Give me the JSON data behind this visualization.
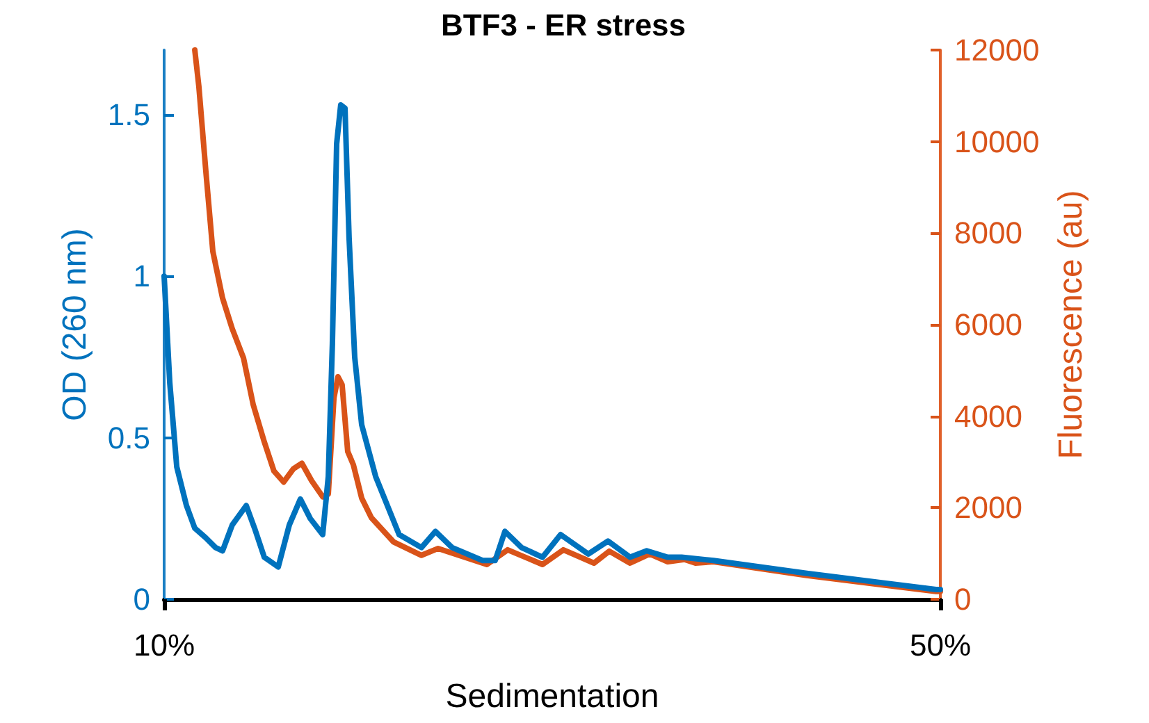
{
  "chart_data": {
    "type": "line",
    "title": "BTF3 - ER stress",
    "xlabel": "Sedimentation",
    "ylabel": "OD (260 nm)",
    "y2label": "Fluorescence (au)",
    "xlim": [
      10,
      50
    ],
    "xticks": [
      {
        "value": 10,
        "label": "10%"
      },
      {
        "value": 50,
        "label": "50%"
      }
    ],
    "ylim": [
      0,
      1.7
    ],
    "yticks": [
      0,
      0.5,
      1,
      1.5
    ],
    "y2lim": [
      0,
      12000
    ],
    "y2ticks": [
      0,
      2000,
      4000,
      6000,
      8000,
      10000,
      12000
    ],
    "grid": false,
    "marker": "none",
    "line_style": "solid",
    "series": [
      {
        "color": "#0072bd",
        "x": [
          10,
          10.29,
          10.65,
          11.15,
          11.58,
          12.15,
          12.65,
          13.01,
          13.51,
          14.23,
          14.66,
          15.16,
          15.88,
          16.45,
          17.02,
          17.53,
          18.17,
          18.46,
          18.67,
          18.89,
          19.1,
          19.32,
          19.53,
          19.82,
          20.18,
          20.9,
          22.11,
          23.26,
          23.98,
          24.84,
          26.41,
          27.06,
          27.56,
          28.42,
          29.5,
          30.43,
          31.86,
          32.87,
          34.01,
          34.87,
          35.95,
          36.67,
          38.31,
          43.12,
          49.78,
          50
        ],
        "values": [
          1.0,
          0.67,
          0.41,
          0.29,
          0.22,
          0.19,
          0.16,
          0.15,
          0.23,
          0.29,
          0.22,
          0.13,
          0.1,
          0.23,
          0.31,
          0.25,
          0.2,
          0.38,
          0.79,
          1.41,
          1.53,
          1.52,
          1.12,
          0.75,
          0.54,
          0.38,
          0.2,
          0.16,
          0.21,
          0.16,
          0.12,
          0.12,
          0.21,
          0.16,
          0.13,
          0.2,
          0.14,
          0.18,
          0.13,
          0.15,
          0.13,
          0.13,
          0.12,
          0.08,
          0.03,
          0.03
        ]
      },
      {
        "color": "#d95319",
        "axis": "y2",
        "x": [
          11.58,
          11.79,
          12.15,
          12.51,
          13.01,
          13.51,
          14.09,
          14.59,
          15.16,
          15.66,
          16.16,
          16.66,
          17.1,
          17.6,
          18.17,
          18.46,
          18.75,
          18.96,
          19.17,
          19.46,
          19.75,
          20.18,
          20.68,
          21.83,
          23.26,
          24.12,
          26.63,
          27.7,
          29.5,
          30.57,
          32.15,
          32.94,
          34.01,
          35.02,
          35.95,
          36.81,
          37.38,
          38.31,
          43.12,
          49.78,
          50
        ],
        "values": [
          12000,
          11200,
          9350,
          7600,
          6580,
          5910,
          5270,
          4250,
          3440,
          2800,
          2560,
          2850,
          2970,
          2590,
          2240,
          2300,
          4400,
          4860,
          4690,
          3230,
          2940,
          2210,
          1780,
          1250,
          960,
          1110,
          760,
          1080,
          760,
          1080,
          790,
          1050,
          790,
          990,
          820,
          870,
          790,
          820,
          520,
          170,
          170
        ]
      }
    ]
  }
}
